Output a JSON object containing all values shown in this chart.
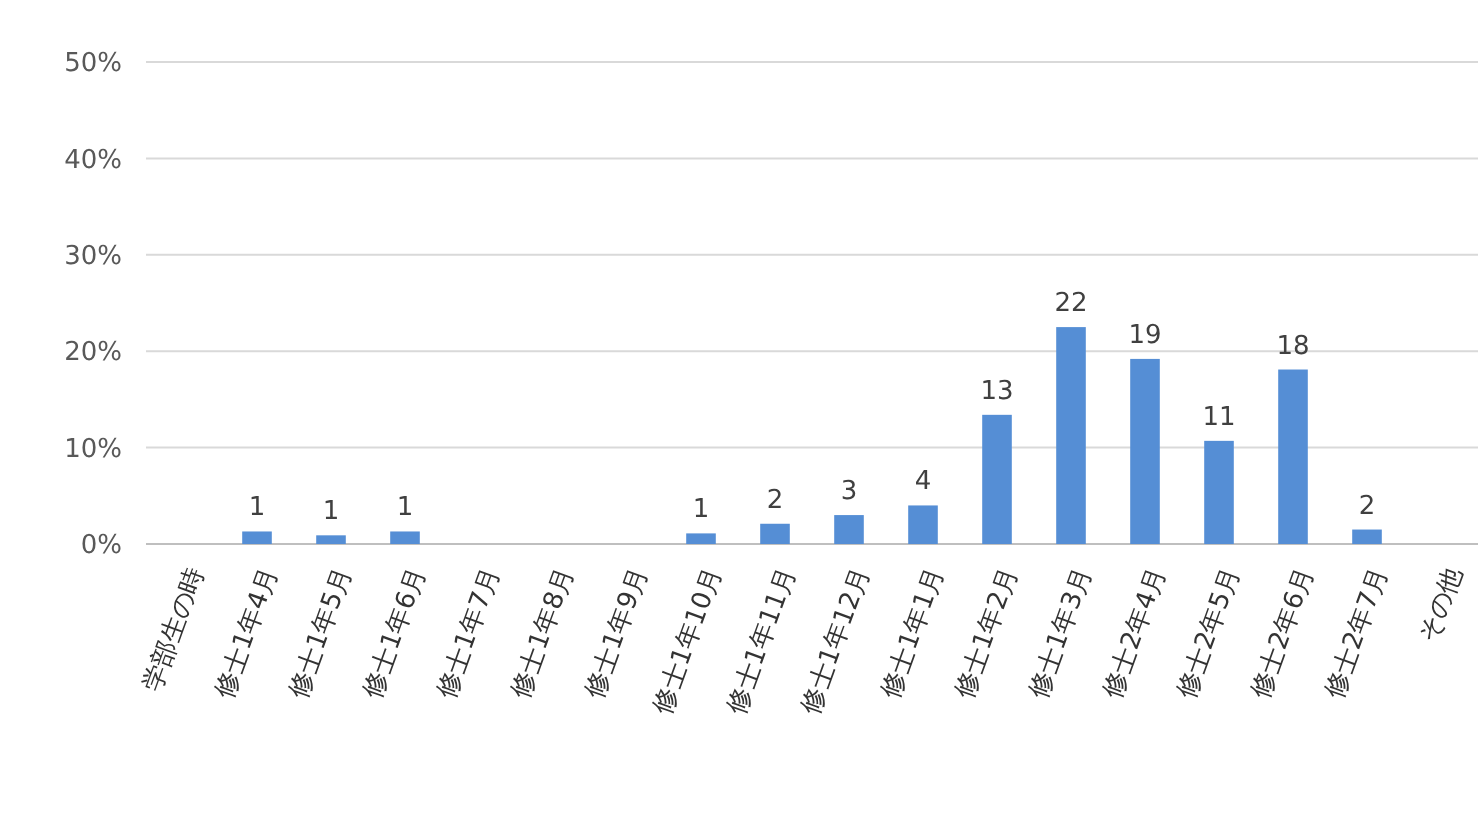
{
  "chart_data": {
    "type": "bar",
    "categories": [
      "学部生の時",
      "修士1年4月",
      "修士1年5月",
      "修士1年6月",
      "修士1年7月",
      "修士1年8月",
      "修士1年9月",
      "修士1年10月",
      "修士1年11月",
      "修士1年12月",
      "修士1年1月",
      "修士1年2月",
      "修士1年3月",
      "修士2年4月",
      "修士2年5月",
      "修士2年6月",
      "修士2年7月",
      "その他"
    ],
    "values": [
      null,
      1.3,
      0.9,
      1.3,
      null,
      null,
      null,
      1.1,
      2.1,
      3.0,
      4.0,
      13.4,
      22.5,
      19.2,
      10.7,
      18.1,
      1.5,
      null
    ],
    "value_labels": [
      null,
      "1",
      "1",
      "1",
      null,
      null,
      null,
      "1",
      "2",
      "3",
      "4",
      "13",
      "22",
      "19",
      "11",
      "18",
      "2",
      null
    ],
    "color": "#558ed5",
    "ylim": [
      0,
      50
    ],
    "yticks": [
      {
        "value": 0,
        "label": "0%"
      },
      {
        "value": 10,
        "label": "10%"
      },
      {
        "value": 20,
        "label": "20%"
      },
      {
        "value": 30,
        "label": "30%"
      },
      {
        "value": 40,
        "label": "40%"
      },
      {
        "value": 50,
        "label": "50%"
      }
    ],
    "grid": "y"
  }
}
